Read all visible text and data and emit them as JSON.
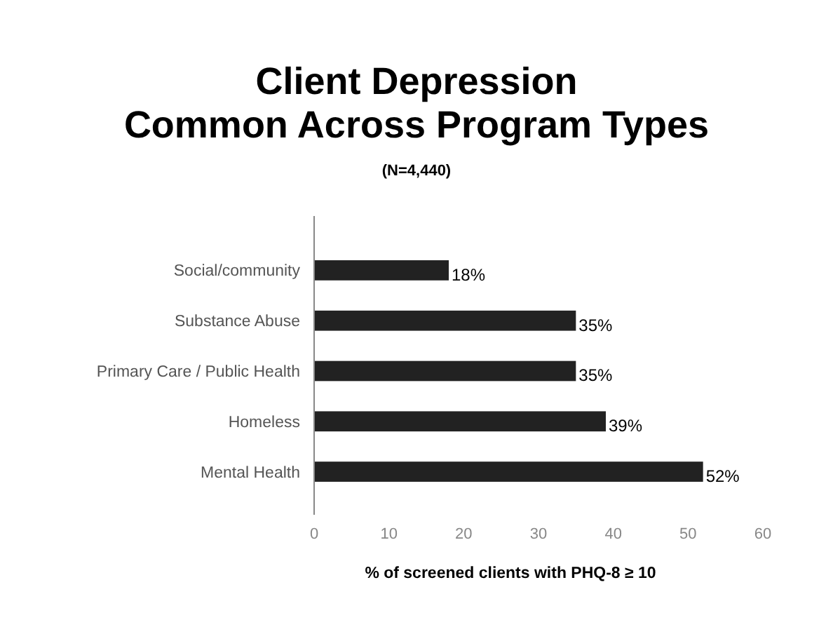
{
  "chart_data": {
    "type": "bar",
    "orientation": "horizontal",
    "title": "Client Depression\nCommon Across Program Types",
    "subtitle": "(N=4,440)",
    "xlabel": "% of screened clients with PHQ-8 ≥ 10",
    "categories": [
      "Social/community",
      "Substance Abuse",
      "Primary Care / Public Health",
      "Homeless",
      "Mental Health"
    ],
    "values": [
      18,
      35,
      35,
      39,
      52
    ],
    "value_labels": [
      "18%",
      "35%",
      "35%",
      "39%",
      "52%"
    ],
    "color": "#222222",
    "xlim": [
      0,
      60
    ],
    "xticks": [
      0,
      10,
      20,
      30,
      40,
      50,
      60
    ],
    "grid": false
  }
}
